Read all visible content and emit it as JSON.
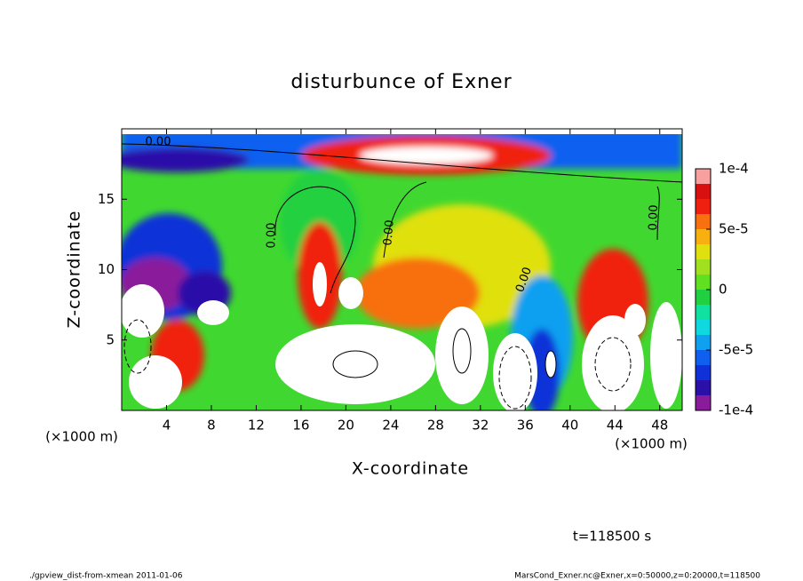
{
  "chart_data": {
    "type": "contour",
    "title": "disturbunce of Exner",
    "x_label": "X-coordinate",
    "y_label": "Z-coordinate",
    "x_unit_labels": [
      "(×1000 m)",
      "(×1000 m)"
    ],
    "xlim": [
      0,
      50
    ],
    "xticks": [
      4,
      8,
      12,
      16,
      20,
      24,
      28,
      32,
      36,
      40,
      44,
      48
    ],
    "ylim": [
      0,
      20
    ],
    "yticks": [
      5,
      10,
      15
    ],
    "colorbar_lim": [
      -0.0001,
      0.0001
    ],
    "colorbar_ticks": [
      {
        "value": 0.0001,
        "label": "1e-4"
      },
      {
        "value": 5e-05,
        "label": "5e-5"
      },
      0,
      {
        "value": -5e-05,
        "label": "-5e-5"
      },
      {
        "value": -0.0001,
        "label": "-1e-4"
      }
    ],
    "colorbar_colors": [
      "#8a1b9b",
      "#2a10a8",
      "#1030d8",
      "#1060f0",
      "#10a0f0",
      "#10d8e0",
      "#10e0a0",
      "#20d040",
      "#60e020",
      "#a0e020",
      "#e0e010",
      "#f8b010",
      "#f87010",
      "#f02010",
      "#d81010",
      "#f8a0a0"
    ],
    "contour_labels": [
      "0.00",
      "0.00",
      "0.00",
      "0.00",
      "0.00"
    ],
    "annotation": "t=118500 s",
    "footer_left": "./gpview_dist-from-xmean  2011-01-06",
    "footer_right": "MarsCond_Exner.nc@Exner,x=0:50000,z=0:20000,t=118500"
  }
}
